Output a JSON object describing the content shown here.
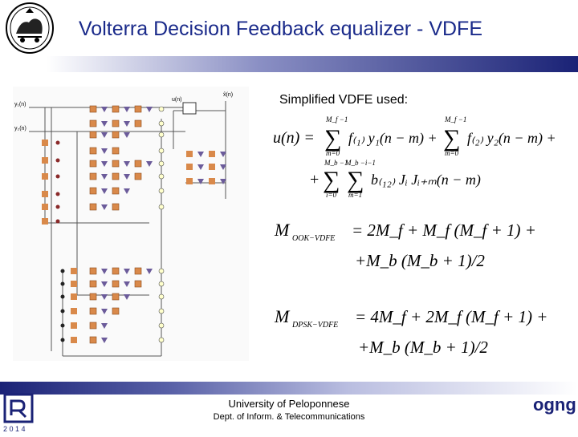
{
  "slide": {
    "title": "Volterra Decision Feedback equalizer - VDFE",
    "subtitle": "Simplified VDFE used:",
    "colors": {
      "title": "#1a2a8a",
      "bar_dark": "#1a2276",
      "bar_light": "#8a8fc4"
    }
  },
  "diagram": {
    "labels": {
      "y1": "y₁(n)",
      "y2": "y₂(n)",
      "un": "u(n)",
      "xhat": "x̂(n)"
    }
  },
  "equations": {
    "u_line1": {
      "lhs": "u(n) =",
      "sum1_upper": "M_f −1",
      "sum1_lower": "m=0",
      "term1": "f₍₁₎ y₁(n − m) +",
      "sum2_upper": "M_f −1",
      "sum2_lower": "m=0",
      "term2": "f₍₂₎ y₂(n − m) +"
    },
    "u_line2": {
      "prefix": "+",
      "sum1_upper": "M_b −1",
      "sum1_lower": "i=0",
      "sum2_upper": "M_b −i−1",
      "sum2_lower": "m=1",
      "term": "b₍₁₂₎ Jᵢ Jᵢ₊ₘ(n − m)"
    },
    "m_ook": {
      "lhs": "M",
      "lhs_sub": "OOK−VDFE",
      "rhs1": "= 2M_f + M_f (M_f + 1) +",
      "rhs2": "+M_b (M_b + 1)/2"
    },
    "m_dpsk": {
      "lhs": "M",
      "lhs_sub": "DPSK−VDFE",
      "rhs1": "= 4M_f + 2M_f (M_f + 1) +",
      "rhs2": "+M_b (M_b + 1)/2"
    }
  },
  "footer": {
    "university": "University of Peloponnese",
    "department": "Dept. of Inform. & Telecommunications",
    "year": "2 0 1 4",
    "logo_text": "ogng"
  }
}
